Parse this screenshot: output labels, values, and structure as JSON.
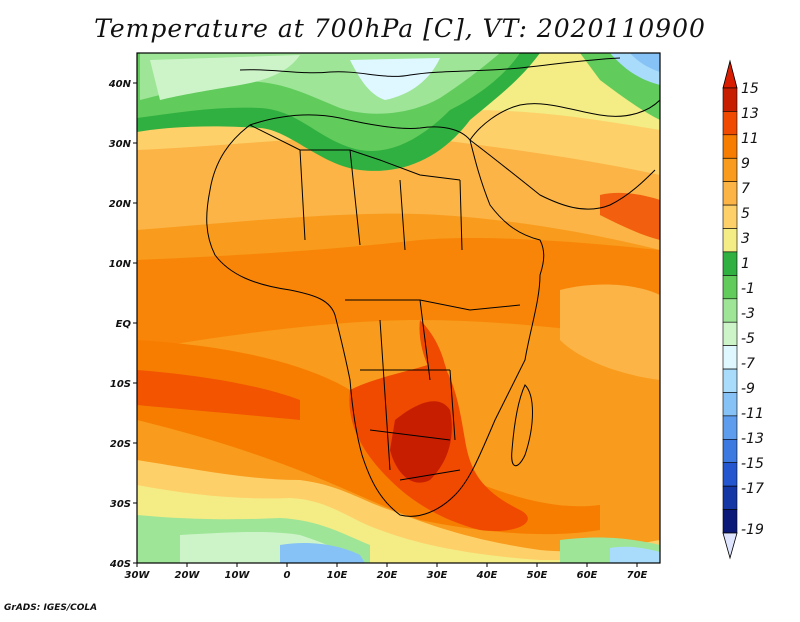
{
  "title": "Temperature at 700hPa [C], VT: 2020110900",
  "footer": "GrADS: IGES/COLA",
  "map": {
    "lon_range": [
      -30,
      75
    ],
    "lat_range": [
      -40,
      45
    ],
    "lon_ticks": [
      "30W",
      "20W",
      "10W",
      "0",
      "10E",
      "20E",
      "30E",
      "40E",
      "50E",
      "60E",
      "70E"
    ],
    "lat_ticks": [
      "40N",
      "30N",
      "20N",
      "10N",
      "EQ",
      "10S",
      "20S",
      "30S",
      "40S"
    ]
  },
  "colorbar": {
    "labels": [
      "15",
      "13",
      "11",
      "9",
      "7",
      "5",
      "3",
      "1",
      "-1",
      "-3",
      "-5",
      "-7",
      "-9",
      "-11",
      "-13",
      "-15",
      "-17",
      "-19"
    ],
    "colors": [
      "#c81e00",
      "#f04a00",
      "#f77d00",
      "#f99b1c",
      "#fbb445",
      "#fdd06a",
      "#f4ec84",
      "#31b042",
      "#61cc5c",
      "#9ee597",
      "#cdf4c9",
      "#dff7ff",
      "#a9dcfb",
      "#86c2f5",
      "#5e9ded",
      "#3c79e0",
      "#2457cf",
      "#1537a5",
      "#0b1a78"
    ],
    "top_color": "#d81d00",
    "bottom_color": "#dfe5ff"
  }
}
